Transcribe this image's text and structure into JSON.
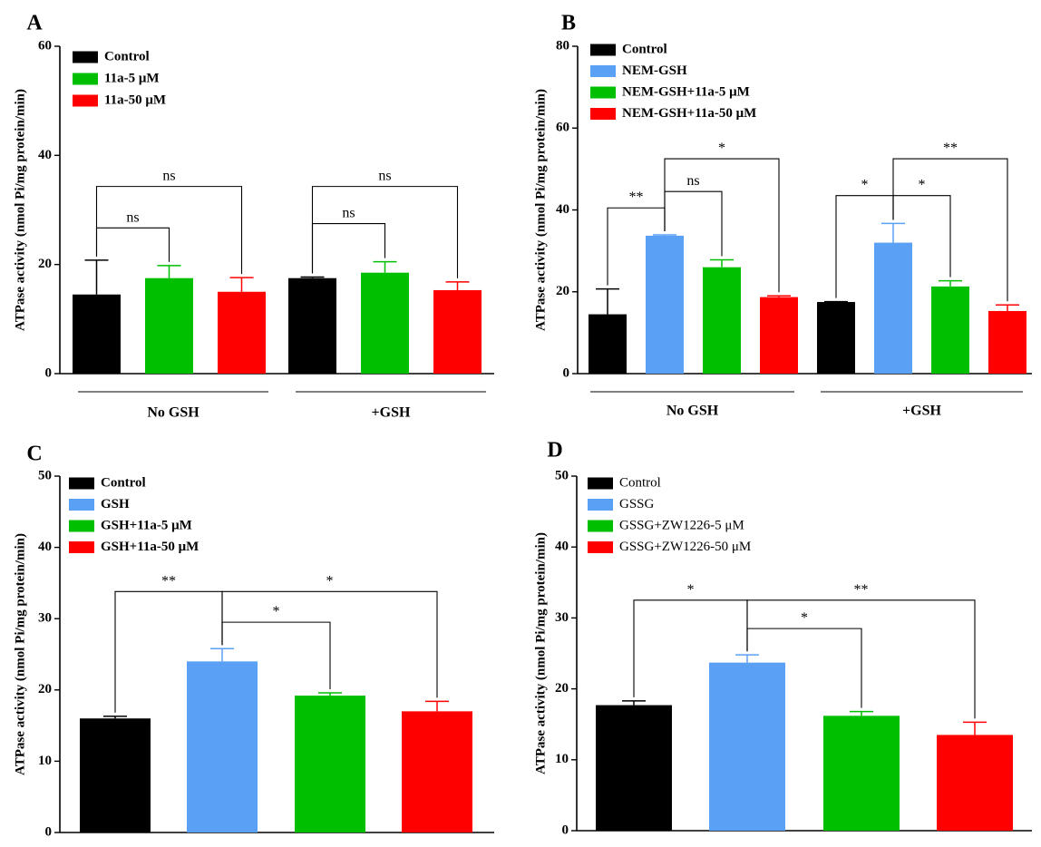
{
  "colors": {
    "control": "#000000",
    "blue": "#5aa0f5",
    "green": "#00bf00",
    "red": "#ff0000"
  },
  "chart_data": [
    {
      "panel": "A",
      "type": "bar",
      "ylabel": "ATPase activity (nmol Pi/mg protein/min)",
      "ylim": [
        0,
        60
      ],
      "yticks": [
        0,
        20,
        40,
        60
      ],
      "legend": [
        {
          "label": "Control",
          "color": "#000000"
        },
        {
          "label": "11a-5 μM",
          "color": "#00bf00"
        },
        {
          "label": "11a-50 μM",
          "color": "#ff0000"
        }
      ],
      "groups": [
        "No GSH",
        "+GSH"
      ],
      "bars": [
        {
          "group": 0,
          "color": "#000000",
          "value": 14.5,
          "err": 6.3
        },
        {
          "group": 0,
          "color": "#00bf00",
          "value": 17.5,
          "err": 2.3
        },
        {
          "group": 0,
          "color": "#ff0000",
          "value": 15.0,
          "err": 2.6
        },
        {
          "group": 1,
          "color": "#000000",
          "value": 17.5,
          "err": 0.2
        },
        {
          "group": 1,
          "color": "#00bf00",
          "value": 18.5,
          "err": 2.0
        },
        {
          "group": 1,
          "color": "#ff0000",
          "value": 15.3,
          "err": 1.5
        }
      ],
      "significance": [
        {
          "from": 0,
          "to": 1,
          "level": 26.7,
          "label": "ns"
        },
        {
          "from": 0,
          "to": 2,
          "level": 34.3,
          "label": "ns"
        },
        {
          "from": 3,
          "to": 4,
          "level": 27.5,
          "label": "ns"
        },
        {
          "from": 3,
          "to": 5,
          "level": 34.3,
          "label": "ns"
        }
      ]
    },
    {
      "panel": "B",
      "type": "bar",
      "ylabel": "ATPase activity (nmol Pi/mg protein/min)",
      "ylim": [
        0,
        80
      ],
      "yticks": [
        0,
        20,
        40,
        60,
        80
      ],
      "legend": [
        {
          "label": "Control",
          "color": "#000000"
        },
        {
          "label": "NEM-GSH",
          "color": "#5aa0f5"
        },
        {
          "label": "NEM-GSH+11a-5 μM",
          "color": "#00bf00"
        },
        {
          "label": "NEM-GSH+11a-50 μM",
          "color": "#ff0000"
        }
      ],
      "groups": [
        "No GSH",
        "+GSH"
      ],
      "bars": [
        {
          "group": 0,
          "color": "#000000",
          "value": 14.5,
          "err": 6.2
        },
        {
          "group": 0,
          "color": "#5aa0f5",
          "value": 33.7,
          "err": 0.2
        },
        {
          "group": 0,
          "color": "#00bf00",
          "value": 26.0,
          "err": 1.8
        },
        {
          "group": 0,
          "color": "#ff0000",
          "value": 18.7,
          "err": 0.3
        },
        {
          "group": 1,
          "color": "#000000",
          "value": 17.5,
          "err": 0.1
        },
        {
          "group": 1,
          "color": "#5aa0f5",
          "value": 32.0,
          "err": 4.7
        },
        {
          "group": 1,
          "color": "#00bf00",
          "value": 21.3,
          "err": 1.4
        },
        {
          "group": 1,
          "color": "#ff0000",
          "value": 15.3,
          "err": 1.5
        }
      ],
      "significance": [
        {
          "from": 0,
          "to": 1,
          "level": 40.5,
          "label": "**"
        },
        {
          "from": 1,
          "to": 2,
          "level": 44.5,
          "label": "ns"
        },
        {
          "from": 1,
          "to": 3,
          "level": 52.5,
          "label": "*"
        },
        {
          "from": 4,
          "to": 5,
          "level": 43.5,
          "label": "*"
        },
        {
          "from": 5,
          "to": 6,
          "level": 43.5,
          "label": "*"
        },
        {
          "from": 5,
          "to": 7,
          "level": 52.5,
          "label": "**"
        }
      ]
    },
    {
      "panel": "C",
      "type": "bar",
      "ylabel": "ATPase activity (nmol Pi/mg protein/min)",
      "ylim": [
        0,
        50
      ],
      "yticks": [
        0,
        10,
        20,
        30,
        40,
        50
      ],
      "legend": [
        {
          "label": "Control",
          "color": "#000000"
        },
        {
          "label": "GSH",
          "color": "#5aa0f5"
        },
        {
          "label": "GSH+11a-5 μM",
          "color": "#00bf00"
        },
        {
          "label": "GSH+11a-50 μM",
          "color": "#ff0000"
        }
      ],
      "groups": [],
      "bars": [
        {
          "group": 0,
          "color": "#000000",
          "value": 16.0,
          "err": 0.3
        },
        {
          "group": 0,
          "color": "#5aa0f5",
          "value": 24.0,
          "err": 1.8
        },
        {
          "group": 0,
          "color": "#00bf00",
          "value": 19.2,
          "err": 0.4
        },
        {
          "group": 0,
          "color": "#ff0000",
          "value": 17.0,
          "err": 1.4
        }
      ],
      "significance": [
        {
          "from": 0,
          "to": 1,
          "level": 33.8,
          "label": "**"
        },
        {
          "from": 1,
          "to": 2,
          "level": 29.5,
          "label": "*"
        },
        {
          "from": 1,
          "to": 3,
          "level": 33.8,
          "label": "*"
        }
      ]
    },
    {
      "panel": "D",
      "type": "bar",
      "ylabel": "ATPase activity (nmol Pi/mg protein/min)",
      "ylim": [
        0,
        50
      ],
      "yticks": [
        0,
        10,
        20,
        30,
        40,
        50
      ],
      "legend": [
        {
          "label": "Control",
          "color": "#000000"
        },
        {
          "label": "GSSG",
          "color": "#5aa0f5"
        },
        {
          "label": "GSSG+ZW1226-5 μM",
          "color": "#00bf00"
        },
        {
          "label": "GSSG+ZW1226-50 μM",
          "color": "#ff0000"
        }
      ],
      "groups": [],
      "bars": [
        {
          "group": 0,
          "color": "#000000",
          "value": 17.7,
          "err": 0.6
        },
        {
          "group": 0,
          "color": "#5aa0f5",
          "value": 23.7,
          "err": 1.1
        },
        {
          "group": 0,
          "color": "#00bf00",
          "value": 16.2,
          "err": 0.6
        },
        {
          "group": 0,
          "color": "#ff0000",
          "value": 13.5,
          "err": 1.8
        }
      ],
      "significance": [
        {
          "from": 0,
          "to": 1,
          "level": 32.5,
          "label": "*"
        },
        {
          "from": 1,
          "to": 2,
          "level": 28.5,
          "label": "*"
        },
        {
          "from": 1,
          "to": 3,
          "level": 32.5,
          "label": "**"
        }
      ]
    }
  ]
}
